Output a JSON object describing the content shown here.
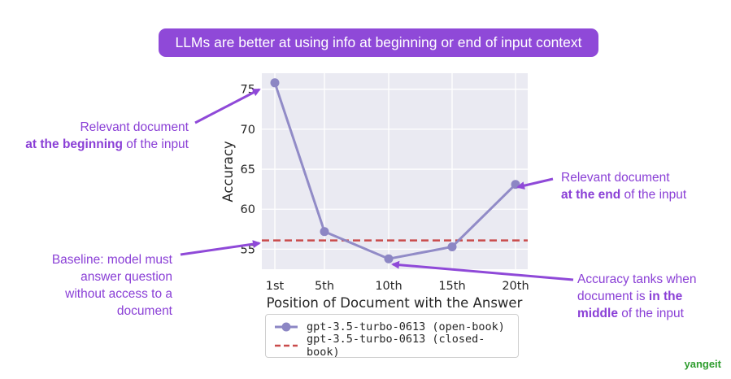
{
  "banner": {
    "text": "LLMs are better at using info at beginning or end of input context"
  },
  "annotations": {
    "beginning": {
      "line1": "Relevant document",
      "bold": "at the beginning",
      "rest": " of the input"
    },
    "end": {
      "line1": "Relevant document",
      "bold": "at the end",
      "rest": " of the input"
    },
    "baseline": {
      "lines": [
        "Baseline: model must",
        "answer question",
        "without access to a",
        "document"
      ]
    },
    "middle": {
      "pre": "Accuracy tanks when",
      "line2_pre": "document is ",
      "bold1": "in the",
      "bold2": "middle",
      "rest": " of the input"
    }
  },
  "colors": {
    "accent": "#8f49d8",
    "series_open": "#8c86c4",
    "series_closed": "#c94b4b",
    "plot_bg": "#eaeaf2",
    "brand": "#2f9d2f"
  },
  "chart_data": {
    "type": "line",
    "title": "",
    "xlabel": "Position of Document with the Answer",
    "ylabel": "Accuracy",
    "categories": [
      "1st",
      "5th",
      "10th",
      "15th",
      "20th"
    ],
    "yticks": [
      55,
      60,
      65,
      70,
      75
    ],
    "ylim": [
      52.5,
      77
    ],
    "grid": true,
    "legend_position": "below",
    "series": [
      {
        "name": "gpt-3.5-turbo-0613 (open-book)",
        "values": [
          75.8,
          57.2,
          53.8,
          55.3,
          63.1
        ],
        "style": "line-marker"
      },
      {
        "name": "gpt-3.5-turbo-0613 (closed-book)",
        "values": [
          56.1,
          56.1,
          56.1,
          56.1,
          56.1
        ],
        "style": "dashed"
      }
    ]
  },
  "brand": {
    "text": "yangeit"
  }
}
